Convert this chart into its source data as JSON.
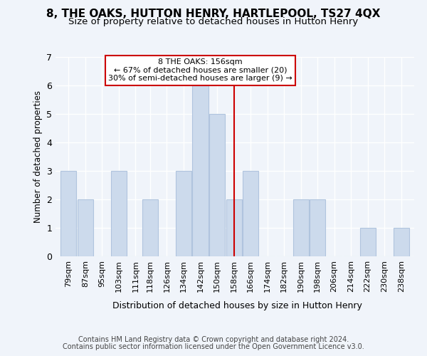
{
  "title": "8, THE OAKS, HUTTON HENRY, HARTLEPOOL, TS27 4QX",
  "subtitle": "Size of property relative to detached houses in Hutton Henry",
  "xlabel": "Distribution of detached houses by size in Hutton Henry",
  "ylabel": "Number of detached properties",
  "categories": [
    "79sqm",
    "87sqm",
    "95sqm",
    "103sqm",
    "111sqm",
    "118sqm",
    "126sqm",
    "134sqm",
    "142sqm",
    "150sqm",
    "158sqm",
    "166sqm",
    "174sqm",
    "182sqm",
    "190sqm",
    "198sqm",
    "206sqm",
    "214sqm",
    "222sqm",
    "230sqm",
    "238sqm"
  ],
  "values": [
    3,
    2,
    0,
    3,
    0,
    2,
    0,
    3,
    6,
    5,
    2,
    3,
    0,
    0,
    2,
    2,
    0,
    0,
    1,
    0,
    1
  ],
  "bar_color": "#ccdaec",
  "bar_edge_color": "#b0c4de",
  "reference_line_x": 158,
  "annotation_line1": "8 THE OAKS: 156sqm",
  "annotation_line2": "← 67% of detached houses are smaller (20)",
  "annotation_line3": "30% of semi-detached houses are larger (9) →",
  "annotation_box_facecolor": "#ffffff",
  "annotation_box_edgecolor": "#cc0000",
  "ref_line_color": "#cc0000",
  "ylim": [
    0,
    7
  ],
  "yticks": [
    0,
    1,
    2,
    3,
    4,
    5,
    6,
    7
  ],
  "footer_line1": "Contains HM Land Registry data © Crown copyright and database right 2024.",
  "footer_line2": "Contains public sector information licensed under the Open Government Licence v3.0.",
  "background_color": "#f0f4fa",
  "grid_color": "#ffffff",
  "title_fontsize": 11,
  "subtitle_fontsize": 9.5,
  "xlabel_fontsize": 9,
  "ylabel_fontsize": 8.5,
  "tick_fontsize": 8,
  "annotation_fontsize": 8,
  "footer_fontsize": 7,
  "bin_centers": [
    79,
    87,
    95,
    103,
    111,
    118,
    126,
    134,
    142,
    150,
    158,
    166,
    174,
    182,
    190,
    198,
    206,
    214,
    222,
    230,
    238
  ],
  "bin_width": 7.5
}
